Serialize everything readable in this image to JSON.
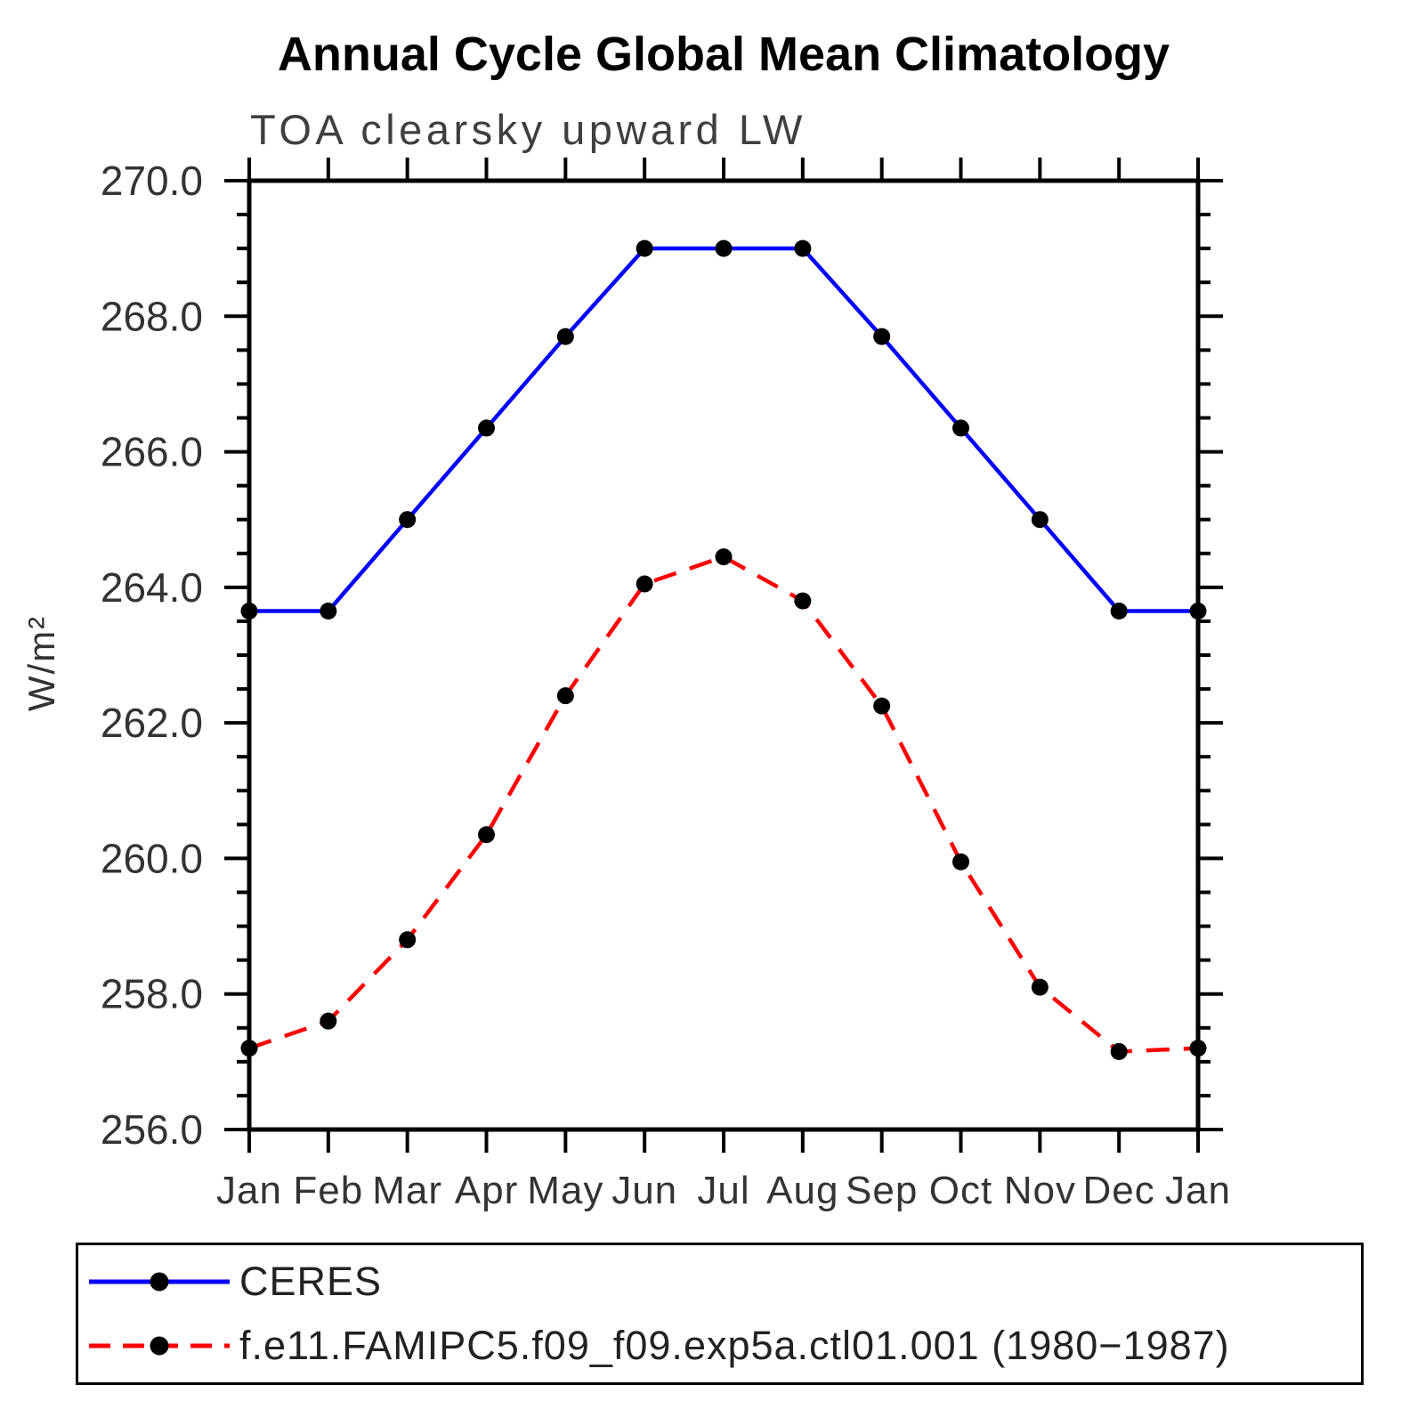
{
  "page": {
    "background": "#ffffff"
  },
  "chart_data": {
    "type": "line",
    "title": "Annual Cycle Global Mean Climatology",
    "subtitle": "TOA clearsky upward LW",
    "ylabel": "W/m²",
    "xlabel": "",
    "categories": [
      "Jan",
      "Feb",
      "Mar",
      "Apr",
      "May",
      "Jun",
      "Jul",
      "Aug",
      "Sep",
      "Oct",
      "Nov",
      "Dec",
      "Jan"
    ],
    "ylim": [
      256.0,
      270.0
    ],
    "ytick_major": 2.0,
    "ytick_minor": 0.5,
    "ytick_labels": [
      "256.0",
      "258.0",
      "260.0",
      "262.0",
      "264.0",
      "266.0",
      "268.0",
      "270.0"
    ],
    "grid": false,
    "legend_position": "bottom",
    "axis_color": "#000000",
    "series": [
      {
        "name": "CERES",
        "color": "#0000ff",
        "line_style": "solid",
        "marker": "circle",
        "marker_color": "#000000",
        "values": [
          263.65,
          263.65,
          265.0,
          266.35,
          267.7,
          269.0,
          269.0,
          269.0,
          267.7,
          266.35,
          265.0,
          263.65,
          263.65
        ]
      },
      {
        "name": "f.e11.FAMIPC5.f09_f09.exp5a.ctl01.001 (1980−1987)",
        "color": "#ff0000",
        "line_style": "dashed",
        "marker": "circle",
        "marker_color": "#000000",
        "values": [
          257.2,
          257.6,
          258.8,
          260.35,
          262.4,
          264.05,
          264.45,
          263.8,
          262.25,
          259.95,
          258.1,
          257.15,
          257.2
        ]
      }
    ]
  }
}
